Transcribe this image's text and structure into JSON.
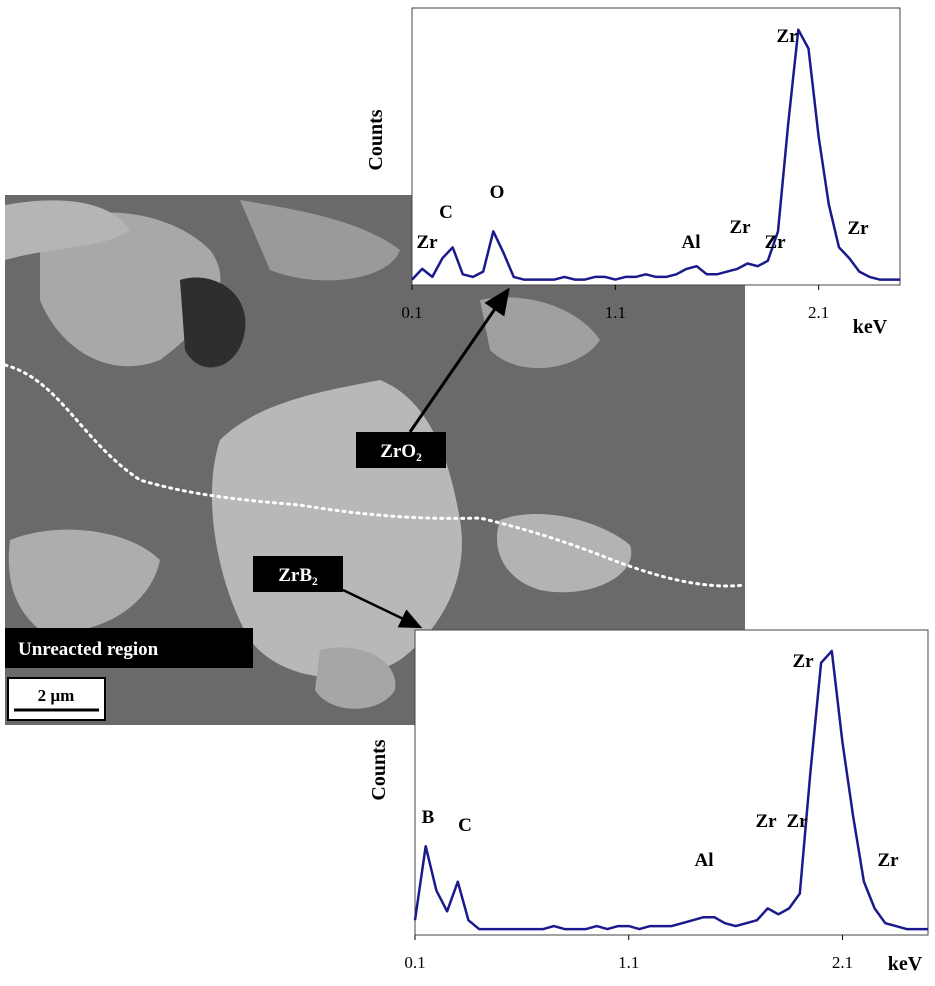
{
  "chart_data": [
    {
      "type": "line",
      "x_label": "keV",
      "y_label": "Counts",
      "color": "#1a1a8c",
      "xlim": [
        0.1,
        2.5
      ],
      "ylim": [
        0,
        100
      ],
      "xticks": [
        0.1,
        1.1,
        2.1
      ],
      "x": [
        0.1,
        0.15,
        0.2,
        0.25,
        0.3,
        0.35,
        0.4,
        0.45,
        0.5,
        0.55,
        0.6,
        0.65,
        0.7,
        0.75,
        0.8,
        0.85,
        0.9,
        0.95,
        1.0,
        1.05,
        1.1,
        1.15,
        1.2,
        1.25,
        1.3,
        1.35,
        1.4,
        1.45,
        1.5,
        1.55,
        1.6,
        1.65,
        1.7,
        1.75,
        1.8,
        1.85,
        1.9,
        1.95,
        2.0,
        2.05,
        2.1,
        2.15,
        2.2,
        2.25,
        2.3,
        2.35,
        2.4,
        2.45,
        2.5
      ],
      "values": [
        2,
        6,
        3,
        10,
        14,
        4,
        3,
        5,
        20,
        12,
        3,
        2,
        2,
        2,
        2,
        3,
        2,
        2,
        3,
        3,
        2,
        3,
        3,
        4,
        3,
        3,
        4,
        6,
        7,
        4,
        4,
        5,
        6,
        8,
        7,
        9,
        20,
        60,
        95,
        88,
        55,
        30,
        14,
        10,
        5,
        3,
        2,
        2,
        2
      ],
      "annotations": [
        "Zr",
        "C",
        "O",
        "Al",
        "Zr",
        "Zr",
        "Zr",
        "Zr"
      ]
    },
    {
      "type": "line",
      "x_label": "keV",
      "y_label": "Counts",
      "color": "#1a1a8c",
      "xlim": [
        0.1,
        2.5
      ],
      "ylim": [
        0,
        100
      ],
      "xticks": [
        0.1,
        1.1,
        2.1
      ],
      "x": [
        0.1,
        0.15,
        0.2,
        0.25,
        0.3,
        0.35,
        0.4,
        0.45,
        0.5,
        0.55,
        0.6,
        0.65,
        0.7,
        0.75,
        0.8,
        0.85,
        0.9,
        0.95,
        1.0,
        1.05,
        1.1,
        1.15,
        1.2,
        1.25,
        1.3,
        1.35,
        1.4,
        1.45,
        1.5,
        1.55,
        1.6,
        1.65,
        1.7,
        1.75,
        1.8,
        1.85,
        1.9,
        1.95,
        2.0,
        2.05,
        2.1,
        2.15,
        2.2,
        2.25,
        2.3,
        2.35,
        2.4,
        2.45,
        2.5
      ],
      "values": [
        5,
        30,
        15,
        8,
        18,
        5,
        2,
        2,
        2,
        2,
        2,
        2,
        2,
        3,
        2,
        2,
        2,
        3,
        2,
        3,
        3,
        2,
        3,
        3,
        3,
        4,
        5,
        6,
        6,
        4,
        3,
        4,
        5,
        9,
        7,
        9,
        14,
        55,
        92,
        96,
        65,
        40,
        18,
        9,
        4,
        3,
        2,
        2,
        2
      ],
      "annotations": [
        "B",
        "C",
        "Al",
        "Zr",
        "Zr",
        "Zr",
        "Zr"
      ]
    }
  ],
  "image_labels": {
    "zro2": "ZrO₂",
    "zrb2": "ZrB₂",
    "region": "Unreacted region",
    "scale": "2 µm"
  }
}
